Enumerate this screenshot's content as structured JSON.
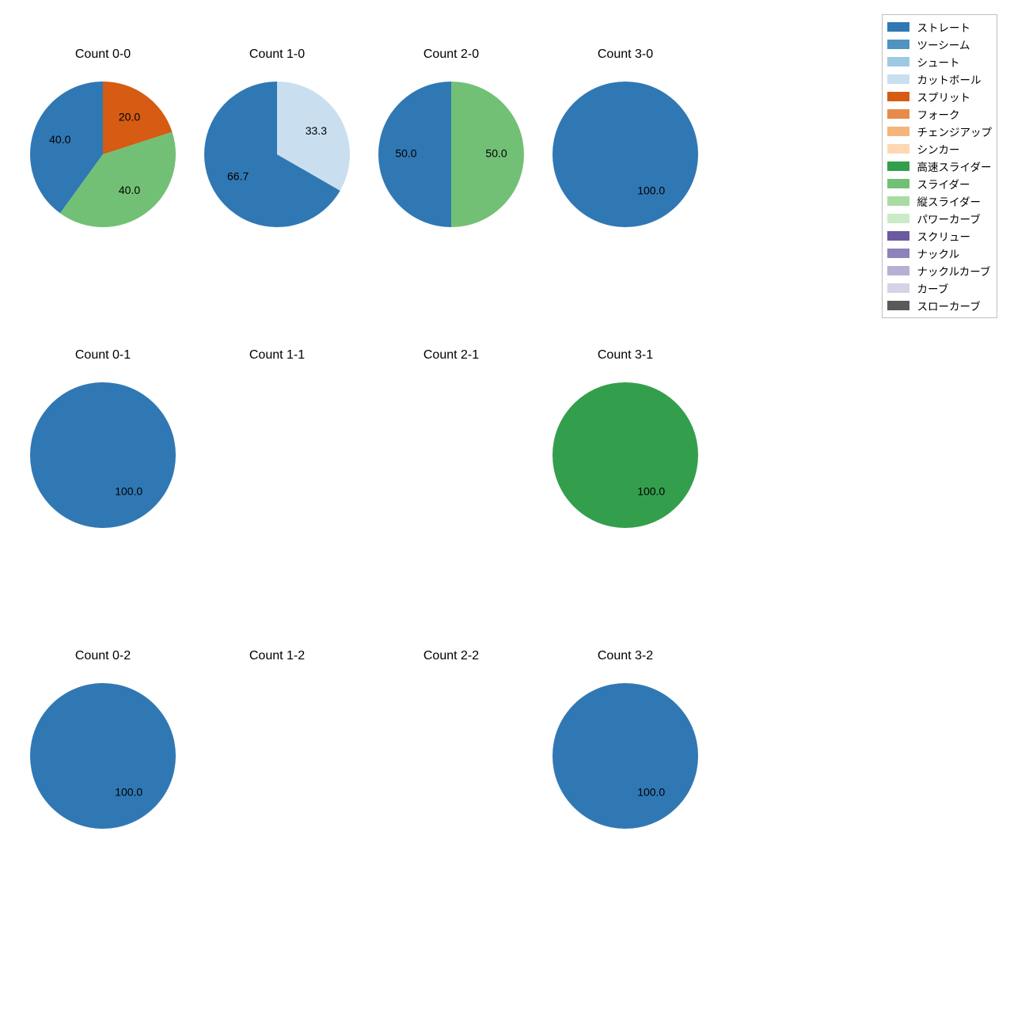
{
  "background_color": "#ffffff",
  "text_color": "#000000",
  "title_fontsize": 16,
  "label_fontsize": 14,
  "legend_fontsize": 13.5,
  "legend_border_color": "#bfbfbf",
  "pitch_types": [
    {
      "key": "straight",
      "label": "ストレート",
      "color": "#3078b4"
    },
    {
      "key": "two_seam",
      "label": "ツーシーム",
      "color": "#4f93c0"
    },
    {
      "key": "shoot",
      "label": "シュート",
      "color": "#9ec9e2"
    },
    {
      "key": "cutball",
      "label": "カットボール",
      "color": "#c9dff0"
    },
    {
      "key": "split",
      "label": "スプリット",
      "color": "#d65b13"
    },
    {
      "key": "fork",
      "label": "フォーク",
      "color": "#e78b4b"
    },
    {
      "key": "changeup",
      "label": "チェンジアップ",
      "color": "#f5b57b"
    },
    {
      "key": "sinker",
      "label": "シンカー",
      "color": "#fdd8b3"
    },
    {
      "key": "fast_slider",
      "label": "高速スライダー",
      "color": "#339f4c"
    },
    {
      "key": "slider",
      "label": "スライダー",
      "color": "#72c075"
    },
    {
      "key": "vert_slider",
      "label": "縦スライダー",
      "color": "#a8dca4"
    },
    {
      "key": "power_curve",
      "label": "パワーカーブ",
      "color": "#caebc7"
    },
    {
      "key": "screw",
      "label": "スクリュー",
      "color": "#6b5aa0"
    },
    {
      "key": "knuckle",
      "label": "ナックル",
      "color": "#8f81b9"
    },
    {
      "key": "knuckle_curve",
      "label": "ナックルカーブ",
      "color": "#b7b0d4"
    },
    {
      "key": "curve",
      "label": "カーブ",
      "color": "#d6d2e7"
    },
    {
      "key": "slow_curve",
      "label": "スローカーブ",
      "color": "#5a5a5a"
    }
  ],
  "charts": [
    {
      "title": "Count 0-0",
      "slices": [
        {
          "key": "straight",
          "value": 40.0,
          "label": "40.0"
        },
        {
          "key": "slider",
          "value": 40.0,
          "label": "40.0"
        },
        {
          "key": "split",
          "value": 20.0,
          "label": "20.0"
        }
      ]
    },
    {
      "title": "Count 1-0",
      "slices": [
        {
          "key": "straight",
          "value": 66.7,
          "label": "66.7"
        },
        {
          "key": "cutball",
          "value": 33.3,
          "label": "33.3"
        }
      ]
    },
    {
      "title": "Count 2-0",
      "slices": [
        {
          "key": "straight",
          "value": 50.0,
          "label": "50.0"
        },
        {
          "key": "slider",
          "value": 50.0,
          "label": "50.0"
        }
      ]
    },
    {
      "title": "Count 3-0",
      "slices": [
        {
          "key": "straight",
          "value": 100.0,
          "label": "100.0"
        }
      ]
    },
    {
      "title": "Count 0-1",
      "slices": [
        {
          "key": "straight",
          "value": 100.0,
          "label": "100.0"
        }
      ]
    },
    {
      "title": "Count 1-1",
      "slices": []
    },
    {
      "title": "Count 2-1",
      "slices": []
    },
    {
      "title": "Count 3-1",
      "slices": [
        {
          "key": "fast_slider",
          "value": 100.0,
          "label": "100.0"
        }
      ]
    },
    {
      "title": "Count 0-2",
      "slices": [
        {
          "key": "straight",
          "value": 100.0,
          "label": "100.0"
        }
      ]
    },
    {
      "title": "Count 1-2",
      "slices": []
    },
    {
      "title": "Count 2-2",
      "slices": []
    },
    {
      "title": "Count 3-2",
      "slices": [
        {
          "key": "straight",
          "value": 100.0,
          "label": "100.0"
        }
      ]
    }
  ],
  "pie_radius": 92,
  "label_radius_ratio": 0.62,
  "start_angle_deg": 90,
  "direction": "counterclockwise"
}
